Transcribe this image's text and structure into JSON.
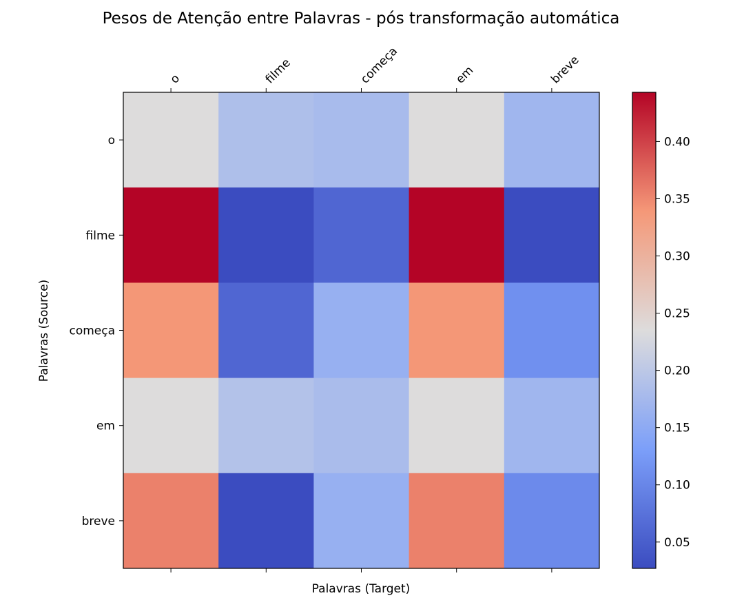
{
  "chart_data": {
    "type": "heatmap",
    "title": "Pesos de Atenção entre Palavras - pós transformação automática",
    "xlabel": "Palavras (Target)",
    "ylabel": "Palavras (Source)",
    "x_categories": [
      "o",
      "filme",
      "começa",
      "em",
      "breve"
    ],
    "y_categories": [
      "o",
      "filme",
      "começa",
      "em",
      "breve"
    ],
    "values": [
      [
        0.235,
        0.185,
        0.178,
        0.235,
        0.17
      ],
      [
        0.443,
        0.027,
        0.06,
        0.443,
        0.027
      ],
      [
        0.34,
        0.06,
        0.16,
        0.34,
        0.112
      ],
      [
        0.235,
        0.19,
        0.18,
        0.235,
        0.17
      ],
      [
        0.355,
        0.027,
        0.16,
        0.355,
        0.105
      ]
    ],
    "colormap": "coolwarm",
    "colorbar": {
      "range": [
        0.027,
        0.443
      ],
      "ticks": [
        0.05,
        0.1,
        0.15,
        0.2,
        0.25,
        0.3,
        0.35,
        0.4
      ],
      "tick_labels": [
        "0.05",
        "0.10",
        "0.15",
        "0.20",
        "0.25",
        "0.30",
        "0.35",
        "0.40"
      ]
    },
    "x_ticks_position": "top"
  }
}
